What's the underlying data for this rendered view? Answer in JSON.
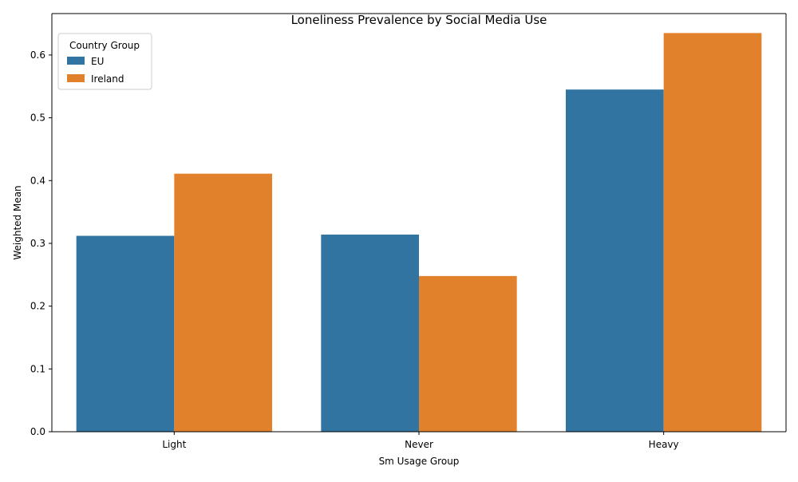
{
  "chart_data": {
    "type": "bar",
    "title": "Loneliness Prevalence by Social Media Use",
    "xlabel": "Sm Usage Group",
    "ylabel": "Weighted Mean",
    "categories": [
      "Light",
      "Never",
      "Heavy"
    ],
    "series": [
      {
        "name": "EU",
        "values": [
          0.312,
          0.314,
          0.545
        ],
        "color": "#3274a1"
      },
      {
        "name": "Ireland",
        "values": [
          0.411,
          0.248,
          0.635
        ],
        "color": "#e1812c"
      }
    ],
    "ylim": [
      0,
      0.666
    ],
    "yticks": [
      "0.0",
      "0.1",
      "0.2",
      "0.3",
      "0.4",
      "0.5",
      "0.6"
    ],
    "grid": false,
    "legend": {
      "title": "Country Group",
      "placement": "top-left"
    }
  }
}
